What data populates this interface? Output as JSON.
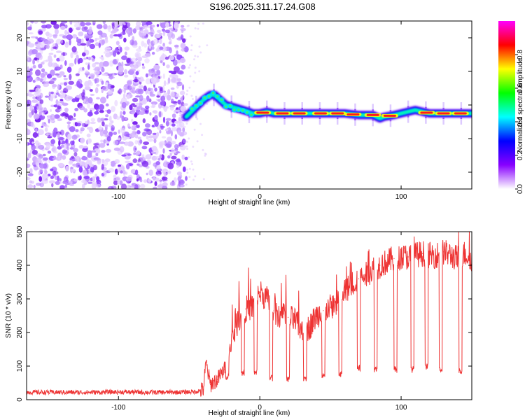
{
  "title": "S196.2025.311.17.24.G08",
  "chart_data": [
    {
      "type": "heatmap",
      "name": "spectrogram",
      "xlabel": "Height of straight line (km)",
      "ylabel": "Frequency (Hz)",
      "xlim": [
        -165,
        150
      ],
      "ylim": [
        -25,
        25
      ],
      "xticks": [
        -100,
        0,
        100
      ],
      "yticks": [
        20,
        10,
        0,
        -10,
        -20
      ],
      "noise_region_x": [
        -165,
        -52
      ],
      "colorbar": {
        "label": "Normalized spectral amplitude",
        "range": [
          0,
          1
        ],
        "ticks": [
          0.0,
          0.2,
          0.4,
          0.6,
          0.8
        ],
        "colors": [
          "#ffffff",
          "#8800ff",
          "#0000ff",
          "#00ffff",
          "#00ff00",
          "#ffff00",
          "#ff0000",
          "#ff00ff"
        ]
      },
      "signal_track": {
        "x": [
          -52,
          -46,
          -40,
          -35,
          -32,
          -28,
          -24,
          -20,
          -16,
          -12,
          -8,
          -5,
          -2,
          0,
          5,
          10,
          15,
          20,
          30,
          40,
          50,
          60,
          70,
          75,
          80,
          85,
          88,
          95,
          100,
          105,
          110,
          120,
          130,
          140,
          150
        ],
        "y": [
          -3.5,
          -1,
          1.5,
          3,
          3,
          1.5,
          0,
          -0.5,
          -1,
          -1.5,
          -2,
          -2.5,
          -2.5,
          -2.5,
          -2,
          -2.5,
          -2.5,
          -2.5,
          -2.5,
          -2.5,
          -2.5,
          -2.5,
          -3,
          -3,
          -3,
          -4,
          -3.5,
          -3,
          -2.5,
          -2,
          -1.5,
          -2.5,
          -2.5,
          -2.5,
          -2.5
        ]
      },
      "peak_segments_x": [
        2,
        16,
        28,
        43,
        55,
        66,
        80,
        92,
        118,
        130,
        142
      ]
    },
    {
      "type": "line",
      "name": "snr",
      "xlabel": "Height of straight line (km)",
      "ylabel": "SNR (10 * v/v)",
      "xlim": [
        -165,
        150
      ],
      "ylim": [
        0,
        500
      ],
      "xticks": [
        -100,
        0,
        100
      ],
      "yticks": [
        0,
        100,
        200,
        300,
        400,
        500
      ],
      "series": [
        {
          "name": "SNR",
          "color": "#ee3333",
          "x": [
            -165,
            -140,
            -120,
            -100,
            -80,
            -60,
            -45,
            -40,
            -38,
            -35,
            -30,
            -25,
            -20,
            -15,
            -10,
            -5,
            0,
            5,
            10,
            15,
            20,
            25,
            30,
            35,
            40,
            45,
            50,
            55,
            60,
            65,
            70,
            75,
            80,
            85,
            90,
            95,
            100,
            105,
            110,
            115,
            120,
            125,
            130,
            135,
            140,
            145,
            150
          ],
          "y": [
            22,
            22,
            22,
            23,
            22,
            22,
            24,
            30,
            110,
            45,
            60,
            90,
            175,
            240,
            270,
            275,
            320,
            300,
            265,
            250,
            245,
            235,
            200,
            215,
            250,
            265,
            275,
            290,
            320,
            345,
            360,
            370,
            390,
            400,
            410,
            420,
            425,
            425,
            430,
            435,
            430,
            430,
            440,
            430,
            420,
            435,
            420
          ]
        }
      ],
      "dips": [
        {
          "x": -23,
          "y": 70
        },
        {
          "x": -12,
          "y": 80
        },
        {
          "x": -3,
          "y": 80
        },
        {
          "x": 8,
          "y": 65
        },
        {
          "x": 20,
          "y": 60
        },
        {
          "x": 32,
          "y": 65
        },
        {
          "x": 45,
          "y": 70
        },
        {
          "x": 57,
          "y": 75
        },
        {
          "x": 70,
          "y": 95
        },
        {
          "x": 82,
          "y": 90
        },
        {
          "x": 96,
          "y": 90
        },
        {
          "x": 108,
          "y": 90
        },
        {
          "x": 118,
          "y": 100
        },
        {
          "x": 128,
          "y": 90
        },
        {
          "x": 142,
          "y": 85
        }
      ]
    }
  ]
}
